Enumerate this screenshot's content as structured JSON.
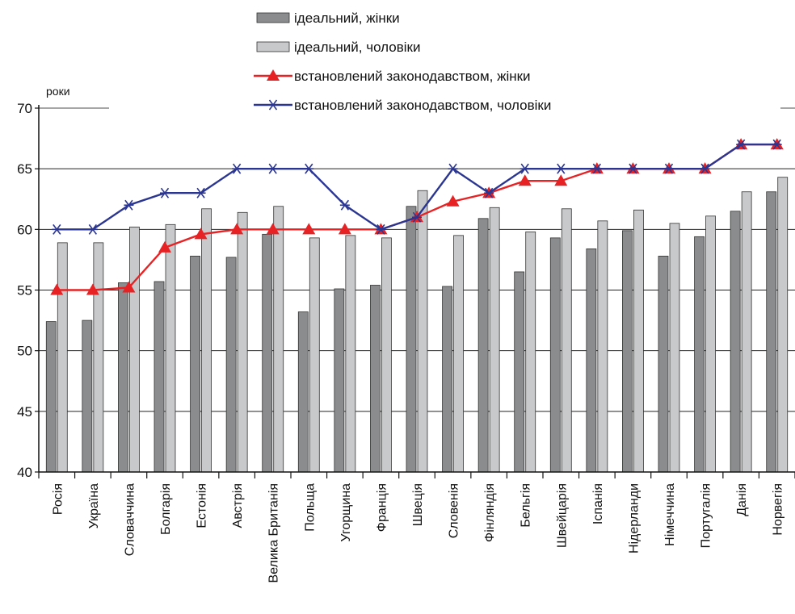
{
  "chart_data": {
    "type": "bar",
    "ylabel": "роки",
    "ylim": [
      40,
      70
    ],
    "yticks": [
      40,
      45,
      50,
      55,
      60,
      65,
      70
    ],
    "grid": true,
    "legend_position": "top",
    "categories": [
      "Росія",
      "Україна",
      "Словаччина",
      "Болгарія",
      "Естонія",
      "Австрія",
      "Велика Британія",
      "Польща",
      "Угорщина",
      "Франція",
      "Швеція",
      "Словенія",
      "Фінляндія",
      "Бельгія",
      "Швейцарія",
      "Іспанія",
      "Нідерланди",
      "Німеччина",
      "Португалія",
      "Данія",
      "Норвегія"
    ],
    "series": [
      {
        "name": "ідеальний, жінки",
        "kind": "bar",
        "color": "#8a8c8e",
        "values": [
          52.4,
          52.5,
          55.6,
          55.7,
          57.8,
          57.7,
          59.6,
          53.2,
          55.1,
          55.4,
          61.9,
          55.3,
          60.9,
          56.5,
          59.3,
          58.4,
          59.9,
          57.8,
          59.4,
          61.5,
          63.1
        ]
      },
      {
        "name": "ідеальний, чоловіки",
        "kind": "bar",
        "color": "#c8c9cb",
        "values": [
          58.9,
          58.9,
          60.2,
          60.4,
          61.7,
          61.4,
          61.9,
          59.3,
          59.5,
          59.3,
          63.2,
          59.5,
          61.8,
          59.8,
          61.7,
          60.7,
          61.6,
          60.5,
          61.1,
          63.1,
          64.3
        ]
      },
      {
        "name": "встановлений законодавством, жінки",
        "kind": "line",
        "marker": "triangle",
        "color": "#e62224",
        "values": [
          55,
          55,
          55.2,
          58.5,
          59.6,
          60,
          60,
          60,
          60,
          60,
          61,
          62.3,
          63,
          64,
          64,
          65,
          65,
          65,
          65,
          67,
          67
        ]
      },
      {
        "name": "встановлений законодавством, чоловіки",
        "kind": "line",
        "marker": "asterisk",
        "color": "#2b3691",
        "values": [
          60,
          60,
          62,
          63,
          63,
          65,
          65,
          65,
          62,
          60,
          61,
          65,
          63,
          65,
          65,
          65,
          65,
          65,
          65,
          67,
          67
        ]
      }
    ]
  }
}
